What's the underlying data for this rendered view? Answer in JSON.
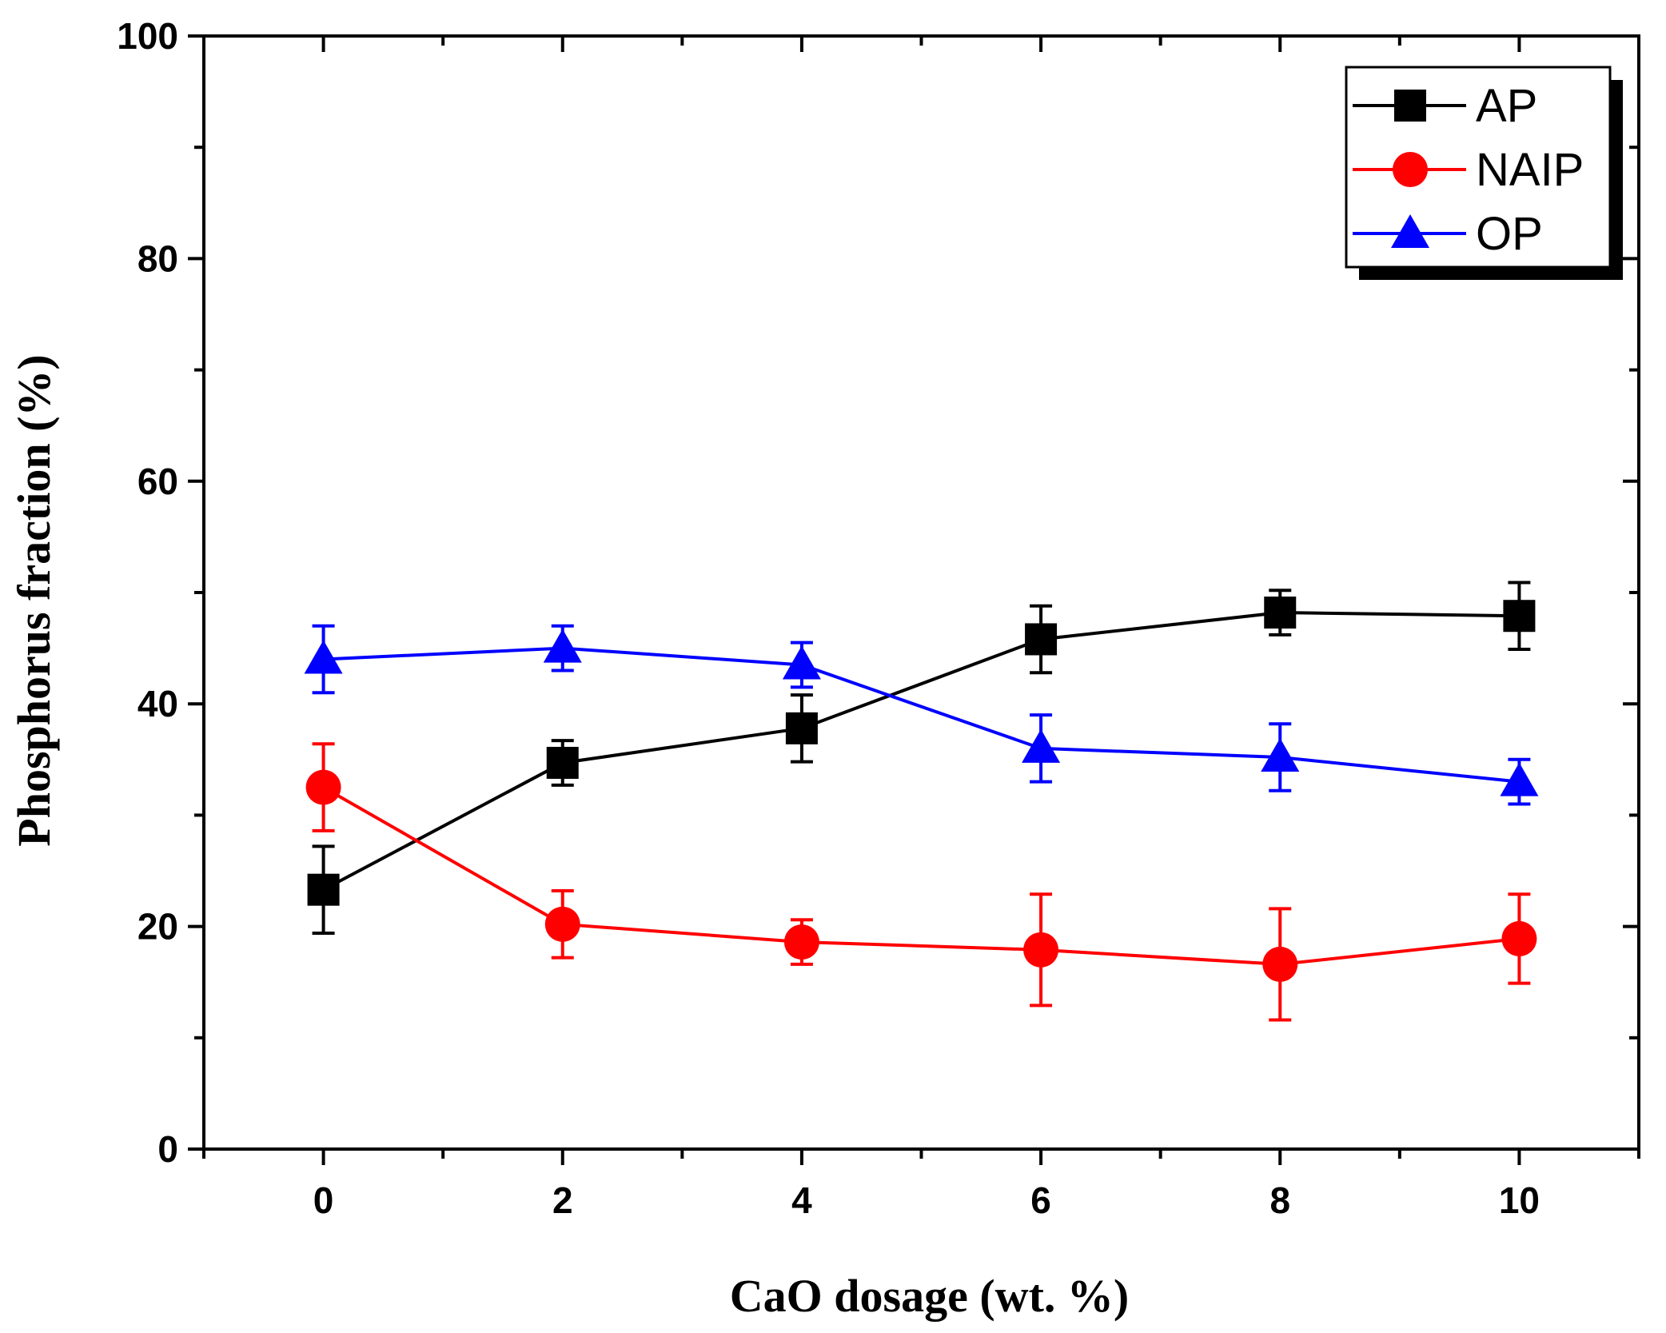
{
  "chart_data": {
    "type": "line",
    "title": "",
    "xlabel": "CaO dosage (wt. %)",
    "ylabel": "Phosphorus fraction (%)",
    "xlim": [
      -1,
      11
    ],
    "ylim": [
      0,
      100
    ],
    "x": [
      0,
      2,
      4,
      6,
      8,
      10
    ],
    "xticks": [
      0,
      2,
      4,
      6,
      8,
      10
    ],
    "yticks": [
      0,
      20,
      40,
      60,
      80,
      100
    ],
    "grid": false,
    "legend_position": "top-right",
    "series": [
      {
        "name": "AP",
        "color": "#000000",
        "marker": "square",
        "values": [
          23.3,
          34.7,
          37.8,
          45.8,
          48.2,
          47.9
        ],
        "errors": [
          3.9,
          2.0,
          3.0,
          3.0,
          2.0,
          3.0
        ]
      },
      {
        "name": "NAIP",
        "color": "#ff0000",
        "marker": "circle",
        "values": [
          32.5,
          20.2,
          18.6,
          17.9,
          16.6,
          18.9
        ],
        "errors": [
          3.9,
          3.0,
          2.0,
          5.0,
          5.0,
          4.0
        ]
      },
      {
        "name": "OP",
        "color": "#0000ff",
        "marker": "triangle",
        "values": [
          44.0,
          45.0,
          43.5,
          36.0,
          35.2,
          33.0
        ],
        "errors": [
          3.0,
          2.0,
          2.0,
          3.0,
          3.0,
          2.0
        ]
      }
    ]
  }
}
